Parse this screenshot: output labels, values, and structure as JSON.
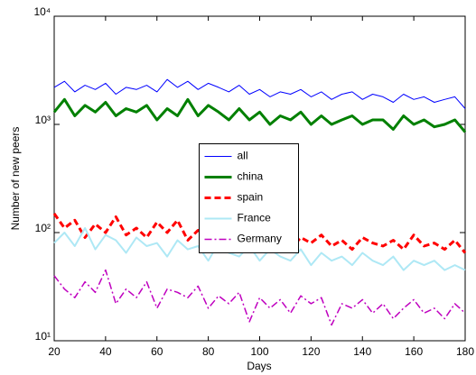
{
  "chart_data": {
    "type": "line",
    "xlabel": "Days",
    "ylabel": "Number of new peers",
    "x": [
      20,
      24,
      28,
      32,
      36,
      40,
      44,
      48,
      52,
      56,
      60,
      64,
      68,
      72,
      76,
      80,
      84,
      88,
      92,
      96,
      100,
      104,
      108,
      112,
      116,
      120,
      124,
      128,
      132,
      136,
      140,
      144,
      148,
      152,
      156,
      160,
      164,
      168,
      172,
      176,
      180
    ],
    "xlim": [
      20,
      180
    ],
    "xticks": [
      20,
      40,
      60,
      80,
      100,
      120,
      140,
      160,
      180
    ],
    "ylim": [
      10,
      10000
    ],
    "yscale": "log",
    "yticks": [
      {
        "value": 10,
        "label": "10¹"
      },
      {
        "value": 100,
        "label": "10²"
      },
      {
        "value": 1000,
        "label": "10³"
      },
      {
        "value": 10000,
        "label": "10⁴"
      }
    ],
    "grid": false,
    "legend": "center",
    "series": [
      {
        "name": "all",
        "color": "#0000ff",
        "linewidth": 1,
        "linestyle": "solid",
        "values": [
          2200,
          2500,
          2000,
          2300,
          2100,
          2400,
          1900,
          2200,
          2100,
          2300,
          2000,
          2600,
          2200,
          2500,
          2100,
          2400,
          2200,
          2000,
          2300,
          1900,
          2100,
          1800,
          2000,
          1900,
          2100,
          1800,
          2000,
          1700,
          1900,
          2000,
          1700,
          1900,
          1800,
          1600,
          1900,
          1700,
          1800,
          1600,
          1700,
          1800,
          1400
        ]
      },
      {
        "name": "china",
        "color": "#008000",
        "linewidth": 3,
        "linestyle": "solid",
        "values": [
          1300,
          1700,
          1200,
          1500,
          1300,
          1600,
          1200,
          1400,
          1300,
          1500,
          1100,
          1400,
          1200,
          1700,
          1200,
          1500,
          1300,
          1100,
          1400,
          1100,
          1300,
          1000,
          1200,
          1100,
          1300,
          1000,
          1200,
          1000,
          1100,
          1200,
          1000,
          1100,
          1100,
          900,
          1200,
          1000,
          1100,
          950,
          1000,
          1100,
          850
        ]
      },
      {
        "name": "spain",
        "color": "#ff0000",
        "linewidth": 3,
        "linestyle": "dashed",
        "values": [
          150,
          110,
          130,
          90,
          120,
          100,
          140,
          95,
          110,
          90,
          125,
          100,
          130,
          85,
          105,
          95,
          80,
          100,
          85,
          90,
          75,
          95,
          85,
          70,
          90,
          80,
          95,
          75,
          85,
          70,
          90,
          80,
          75,
          85,
          70,
          95,
          75,
          80,
          70,
          85,
          65
        ]
      },
      {
        "name": "France",
        "color": "#aee8f5",
        "linewidth": 2,
        "linestyle": "solid",
        "values": [
          80,
          100,
          75,
          110,
          70,
          95,
          85,
          65,
          90,
          75,
          80,
          60,
          85,
          70,
          75,
          55,
          80,
          65,
          60,
          75,
          55,
          70,
          60,
          55,
          70,
          50,
          65,
          55,
          60,
          50,
          65,
          55,
          50,
          60,
          45,
          55,
          50,
          55,
          45,
          50,
          45
        ]
      },
      {
        "name": "Germany",
        "color": "#bf00bf",
        "linewidth": 1.5,
        "linestyle": "dashdot",
        "values": [
          40,
          30,
          25,
          35,
          28,
          45,
          22,
          30,
          25,
          35,
          20,
          30,
          28,
          25,
          32,
          20,
          26,
          22,
          28,
          15,
          25,
          20,
          24,
          18,
          26,
          22,
          25,
          14,
          22,
          20,
          24,
          18,
          22,
          16,
          20,
          24,
          18,
          20,
          16,
          22,
          18
        ]
      }
    ]
  }
}
